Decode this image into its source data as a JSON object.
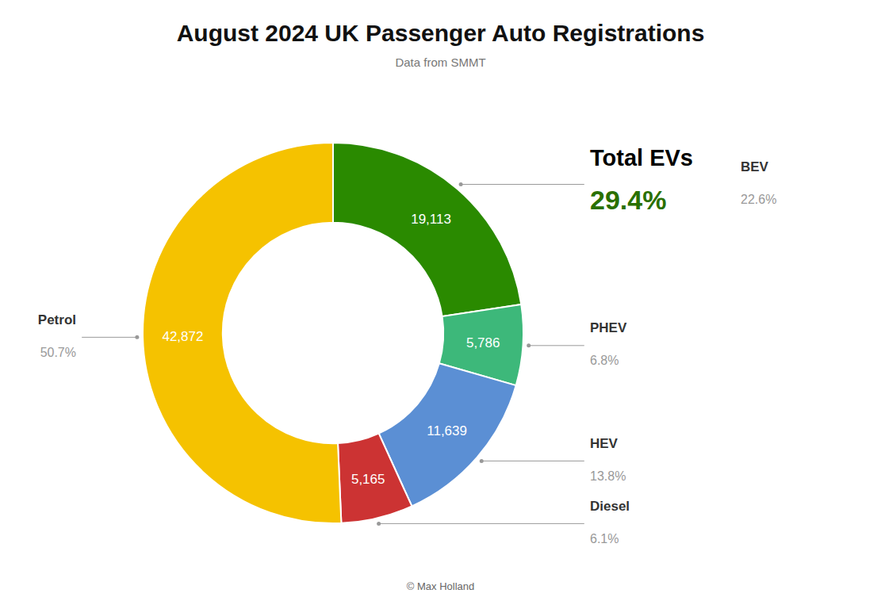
{
  "chart_data": {
    "type": "donut",
    "title": "August 2024 UK Passenger Auto Registrations",
    "subtitle": "Data from SMMT",
    "caption": "© Max Holland",
    "categories": [
      "BEV",
      "PHEV",
      "HEV",
      "Diesel",
      "Petrol"
    ],
    "values": [
      19113,
      5786,
      11639,
      5165,
      42872
    ],
    "value_labels": [
      "19,113",
      "5,786",
      "11,639",
      "5,165",
      "42,872"
    ],
    "share_labels": [
      "22.6%",
      "6.8%",
      "13.8%",
      "6.1%",
      "50.7%"
    ],
    "colors": [
      "#2a8a00",
      "#3db87a",
      "#5b8fd4",
      "#cc3333",
      "#f5c200"
    ],
    "data_labels": true,
    "annotation": {
      "label": "Total EVs",
      "value_label": "29.4%",
      "color": "#2a7000"
    }
  }
}
